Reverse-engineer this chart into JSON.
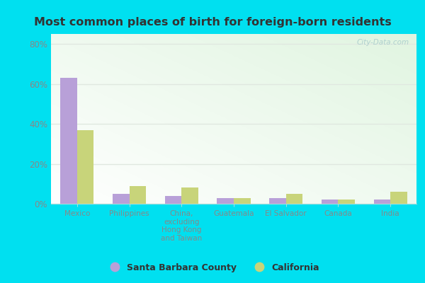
{
  "title": "Most common places of birth for foreign-born residents",
  "categories": [
    "Mexico",
    "Philippines",
    "China,\nexcluding\nHong Kong\nand Taiwan",
    "Guatemala",
    "El Salvador",
    "Canada",
    "India"
  ],
  "santa_barbara": [
    63,
    5,
    4,
    3,
    3,
    2,
    2
  ],
  "california": [
    37,
    9,
    8,
    3,
    5,
    2,
    6
  ],
  "bar_color_sb": "#b8a0d8",
  "bar_color_ca": "#c8d47a",
  "background_outer": "#00e0f0",
  "ylabel_ticks": [
    "0%",
    "20%",
    "40%",
    "60%",
    "80%"
  ],
  "ytick_vals": [
    0,
    20,
    40,
    60,
    80
  ],
  "ylim": [
    0,
    85
  ],
  "legend_labels": [
    "Santa Barbara County",
    "California"
  ],
  "watermark": "City-Data.com",
  "tick_color": "#888888",
  "grid_color": "#e0e8e0"
}
